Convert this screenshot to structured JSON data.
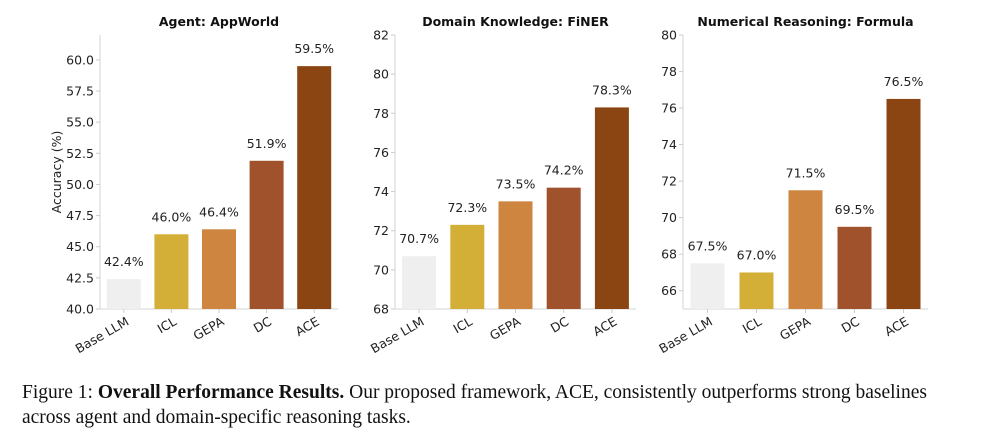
{
  "chart_data": [
    {
      "type": "bar",
      "title": "Agent: AppWorld",
      "ylabel": "Accuracy (%)",
      "xlabel": "",
      "categories": [
        "Base LLM",
        "ICL",
        "GEPA",
        "DC",
        "ACE"
      ],
      "values": [
        42.4,
        46.0,
        46.4,
        51.9,
        59.5
      ],
      "data_labels": [
        "42.4%",
        "46.0%",
        "46.4%",
        "51.9%",
        "59.5%"
      ],
      "ylim": [
        40,
        62
      ],
      "yticks": [
        40.0,
        42.5,
        45.0,
        47.5,
        50.0,
        52.5,
        55.0,
        57.5,
        60.0
      ],
      "ytick_decimals": 1,
      "grid": false
    },
    {
      "type": "bar",
      "title": "Domain Knowledge: FiNER",
      "ylabel": "",
      "xlabel": "",
      "categories": [
        "Base LLM",
        "ICL",
        "GEPA",
        "DC",
        "ACE"
      ],
      "values": [
        70.7,
        72.3,
        73.5,
        74.2,
        78.3
      ],
      "data_labels": [
        "70.7%",
        "72.3%",
        "73.5%",
        "74.2%",
        "78.3%"
      ],
      "ylim": [
        68,
        82
      ],
      "yticks": [
        68,
        70,
        72,
        74,
        76,
        78,
        80,
        82
      ],
      "ytick_decimals": 0,
      "grid": false
    },
    {
      "type": "bar",
      "title": "Numerical Reasoning: Formula",
      "ylabel": "",
      "xlabel": "",
      "categories": [
        "Base LLM",
        "ICL",
        "GEPA",
        "DC",
        "ACE"
      ],
      "values": [
        67.5,
        67.0,
        71.5,
        69.5,
        76.5
      ],
      "data_labels": [
        "67.5%",
        "67.0%",
        "71.5%",
        "69.5%",
        "76.5%"
      ],
      "ylim": [
        65,
        80
      ],
      "yticks": [
        66,
        68,
        70,
        72,
        74,
        76,
        78,
        80
      ],
      "ytick_decimals": 0,
      "grid": false
    }
  ],
  "colors": {
    "Base LLM": "#efefef",
    "ICL": "#d4af37",
    "GEPA": "#cd853f",
    "DC": "#a0522d",
    "ACE": "#8b4513"
  },
  "caption": {
    "prefix": "Figure 1: ",
    "bold": "Overall Performance Results.",
    "text": " Our proposed framework, ACE, consistently outperforms strong baselines across agent and domain-specific reasoning tasks."
  }
}
